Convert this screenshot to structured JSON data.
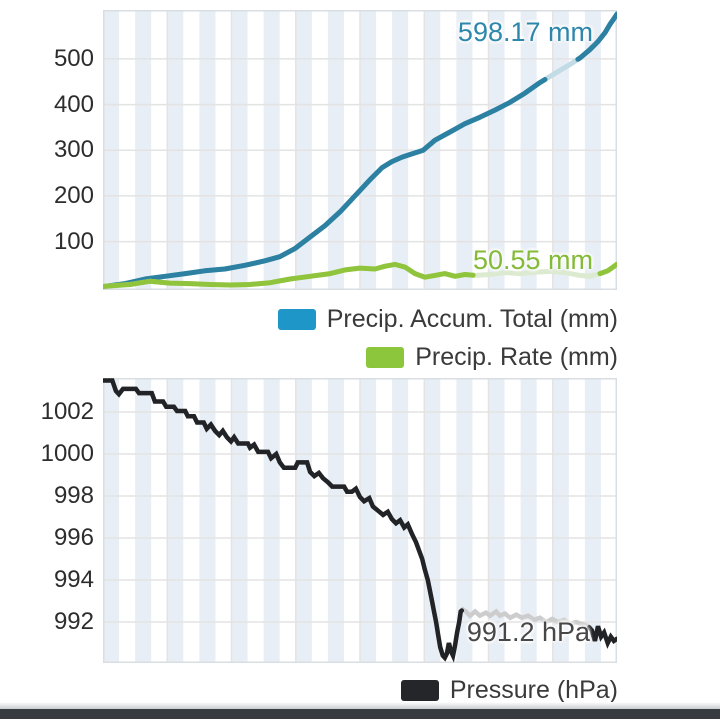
{
  "colors": {
    "background": "#ffffff",
    "plot_band": "#e8eef5",
    "grid_line": "#e3e3e3",
    "plot_border": "#d9dee2",
    "axis_text": "#2d2d2d",
    "legend_text": "#3a3a3a",
    "bottom_bar": "#383b3f"
  },
  "chart_data": [
    {
      "type": "line",
      "title": "",
      "xlabel": "",
      "ylabel": "",
      "x_axis": {
        "tick_labels_visible": false,
        "divisions": 8,
        "band_count": 32
      },
      "y_axis": {
        "ticks": [
          100,
          200,
          300,
          400,
          500
        ],
        "range": [
          -6,
          607
        ]
      },
      "grid": true,
      "legend_position": "bottom-right",
      "series": [
        {
          "name": "Precip. Accum. Total (mm)",
          "unit": "mm",
          "final_value": 598.17,
          "color": "#2c80a1",
          "light_color": "#c2dbe4",
          "stroke_width": 5,
          "linejoin": "round",
          "dark_ranges": [
            [
              0,
              86
            ],
            [
              92.4,
              100
            ]
          ],
          "points": [
            [
              0.4,
              2
            ],
            [
              4.3,
              8
            ],
            [
              8.2,
              18
            ],
            [
              12.1,
              24
            ],
            [
              16.0,
              30
            ],
            [
              19.8,
              36
            ],
            [
              23.7,
              40
            ],
            [
              27.6,
              48
            ],
            [
              31.5,
              58
            ],
            [
              34.4,
              67
            ],
            [
              37.4,
              85
            ],
            [
              40.3,
              110
            ],
            [
              43.2,
              135
            ],
            [
              46.1,
              165
            ],
            [
              49.0,
              200
            ],
            [
              51.9,
              235
            ],
            [
              54.3,
              262
            ],
            [
              56.2,
              275
            ],
            [
              58.2,
              285
            ],
            [
              60.1,
              292
            ],
            [
              62.3,
              300
            ],
            [
              64.6,
              322
            ],
            [
              67.5,
              340
            ],
            [
              70.4,
              358
            ],
            [
              73.3,
              372
            ],
            [
              76.3,
              388
            ],
            [
              79.2,
              405
            ],
            [
              82.1,
              425
            ],
            [
              85.0,
              448
            ],
            [
              87.9,
              468
            ],
            [
              90.9,
              488
            ],
            [
              92.8,
              502
            ],
            [
              94.7,
              520
            ],
            [
              96.3,
              538
            ],
            [
              97.7,
              558
            ],
            [
              98.6,
              575
            ],
            [
              99.4,
              588
            ],
            [
              100,
              598.17
            ]
          ]
        },
        {
          "name": "Precip. Rate (mm)",
          "unit": "mm",
          "final_value": 50.55,
          "color": "#8fc43c",
          "light_color": "#dcead0",
          "stroke_width": 5,
          "linejoin": "round",
          "dark_ranges": [
            [
              0,
              72
            ],
            [
              96.7,
              100
            ]
          ],
          "points": [
            [
              0.4,
              2
            ],
            [
              5.3,
              6
            ],
            [
              9.1,
              13
            ],
            [
              13.0,
              9
            ],
            [
              16.9,
              8
            ],
            [
              20.8,
              6
            ],
            [
              24.7,
              5
            ],
            [
              28.6,
              6
            ],
            [
              32.5,
              10
            ],
            [
              36.4,
              18
            ],
            [
              40.3,
              24
            ],
            [
              44.2,
              30
            ],
            [
              47.1,
              38
            ],
            [
              50.0,
              42
            ],
            [
              52.9,
              40
            ],
            [
              54.9,
              46
            ],
            [
              56.8,
              50
            ],
            [
              58.8,
              44
            ],
            [
              60.7,
              30
            ],
            [
              62.6,
              22
            ],
            [
              64.6,
              26
            ],
            [
              66.5,
              30
            ],
            [
              68.5,
              24
            ],
            [
              70.4,
              28
            ],
            [
              72.4,
              26
            ],
            [
              75.3,
              28
            ],
            [
              78.2,
              32
            ],
            [
              81.1,
              30
            ],
            [
              84.0,
              33
            ],
            [
              87.0,
              35
            ],
            [
              89.9,
              32
            ],
            [
              92.8,
              26
            ],
            [
              94.7,
              24
            ],
            [
              96.7,
              30
            ],
            [
              98.2,
              36
            ],
            [
              99.2,
              44
            ],
            [
              100,
              50.55
            ]
          ]
        }
      ],
      "legend": [
        {
          "label": "Precip. Accum. Total (mm)",
          "color": "#1e96c8"
        },
        {
          "label": "Precip. Rate (mm)",
          "color": "#8cc63d"
        }
      ],
      "annotations": [
        {
          "text": "598.17 mm",
          "color": "#2c87ab"
        },
        {
          "text": "50.55 mm",
          "color": "#83ba37"
        }
      ]
    },
    {
      "type": "line",
      "title": "",
      "xlabel": "",
      "ylabel": "",
      "x_axis": {
        "tick_labels_visible": false,
        "divisions": 8,
        "band_count": 32
      },
      "y_axis": {
        "ticks": [
          992,
          994,
          996,
          998,
          1000,
          1002
        ],
        "range": [
          990.05,
          1003.62
        ]
      },
      "grid": true,
      "legend_position": "bottom-right",
      "series": [
        {
          "name": "Pressure (hPa)",
          "unit": "hPa",
          "final_value": 991.2,
          "color": "#212326",
          "light_color": "#cdcdcd",
          "stroke_width": 4.5,
          "linejoin": "miter",
          "dark_ranges": [
            [
              0,
              69.8
            ],
            [
              94.6,
              100
            ]
          ],
          "points": [
            [
              0.4,
              1003.5
            ],
            [
              1.8,
              1003.5
            ],
            [
              2.5,
              1003.0
            ],
            [
              3.1,
              1002.85
            ],
            [
              3.9,
              1003.1
            ],
            [
              6.4,
              1003.1
            ],
            [
              7.0,
              1002.9
            ],
            [
              9.5,
              1002.9
            ],
            [
              10.1,
              1002.5
            ],
            [
              11.7,
              1002.5
            ],
            [
              12.3,
              1002.25
            ],
            [
              13.8,
              1002.25
            ],
            [
              14.4,
              1002.05
            ],
            [
              16.0,
              1002.05
            ],
            [
              16.5,
              1001.8
            ],
            [
              17.7,
              1001.8
            ],
            [
              18.3,
              1001.5
            ],
            [
              19.6,
              1001.5
            ],
            [
              20.2,
              1001.2
            ],
            [
              21.0,
              1001.4
            ],
            [
              21.8,
              1001.1
            ],
            [
              22.6,
              1000.9
            ],
            [
              23.3,
              1001.1
            ],
            [
              24.1,
              1000.8
            ],
            [
              24.9,
              1000.6
            ],
            [
              25.5,
              1000.8
            ],
            [
              26.3,
              1000.5
            ],
            [
              28.2,
              1000.5
            ],
            [
              28.6,
              1000.3
            ],
            [
              29.4,
              1000.45
            ],
            [
              30.2,
              1000.1
            ],
            [
              32.1,
              1000.1
            ],
            [
              32.7,
              999.8
            ],
            [
              33.7,
              1000.0
            ],
            [
              34.4,
              999.6
            ],
            [
              35.2,
              999.35
            ],
            [
              37.4,
              999.35
            ],
            [
              37.9,
              999.6
            ],
            [
              39.7,
              999.6
            ],
            [
              40.3,
              999.15
            ],
            [
              41.1,
              998.95
            ],
            [
              42.0,
              999.1
            ],
            [
              42.8,
              998.85
            ],
            [
              43.8,
              998.65
            ],
            [
              44.6,
              998.45
            ],
            [
              46.9,
              998.45
            ],
            [
              47.5,
              998.2
            ],
            [
              48.4,
              998.2
            ],
            [
              49.2,
              998.35
            ],
            [
              50.0,
              997.95
            ],
            [
              50.8,
              997.75
            ],
            [
              51.8,
              997.9
            ],
            [
              52.5,
              997.5
            ],
            [
              53.5,
              997.3
            ],
            [
              54.5,
              997.1
            ],
            [
              55.4,
              997.25
            ],
            [
              56.2,
              996.9
            ],
            [
              57.0,
              996.7
            ],
            [
              57.8,
              996.85
            ],
            [
              58.6,
              996.5
            ],
            [
              59.3,
              996.65
            ],
            [
              60.1,
              996.2
            ],
            [
              60.9,
              995.8
            ],
            [
              61.5,
              995.4
            ],
            [
              62.1,
              995.0
            ],
            [
              62.6,
              994.5
            ],
            [
              63.2,
              994.0
            ],
            [
              63.6,
              993.5
            ],
            [
              64.0,
              993.0
            ],
            [
              64.4,
              992.5
            ],
            [
              64.8,
              992.0
            ],
            [
              65.2,
              991.4
            ],
            [
              65.6,
              990.8
            ],
            [
              66.1,
              990.4
            ],
            [
              66.5,
              990.3
            ],
            [
              66.9,
              990.5
            ],
            [
              67.3,
              991.0
            ],
            [
              67.7,
              990.6
            ],
            [
              68.1,
              990.4
            ],
            [
              68.5,
              990.9
            ],
            [
              68.9,
              991.5
            ],
            [
              69.3,
              992.0
            ],
            [
              69.6,
              992.5
            ],
            [
              70.0,
              992.6
            ],
            [
              70.6,
              992.5
            ],
            [
              71.4,
              992.3
            ],
            [
              72.4,
              992.5
            ],
            [
              73.3,
              992.3
            ],
            [
              74.5,
              992.45
            ],
            [
              75.3,
              992.3
            ],
            [
              76.5,
              992.5
            ],
            [
              77.2,
              992.3
            ],
            [
              78.2,
              992.4
            ],
            [
              79.2,
              992.2
            ],
            [
              80.4,
              992.35
            ],
            [
              81.5,
              992.2
            ],
            [
              82.7,
              992.3
            ],
            [
              83.9,
              992.1
            ],
            [
              85.0,
              992.2
            ],
            [
              86.2,
              992.0
            ],
            [
              87.4,
              992.15
            ],
            [
              88.5,
              992.0
            ],
            [
              89.7,
              992.1
            ],
            [
              90.9,
              991.9
            ],
            [
              92.0,
              992.0
            ],
            [
              93.2,
              991.9
            ],
            [
              94.4,
              991.8
            ],
            [
              95.1,
              991.6
            ],
            [
              95.7,
              991.1
            ],
            [
              96.3,
              991.8
            ],
            [
              96.9,
              991.3
            ],
            [
              97.5,
              991.5
            ],
            [
              98.2,
              991.0
            ],
            [
              98.8,
              991.3
            ],
            [
              99.4,
              991.1
            ],
            [
              100,
              991.2
            ]
          ]
        }
      ],
      "legend": [
        {
          "label": "Pressure (hPa)",
          "color": "#242629"
        }
      ],
      "annotations": [
        {
          "text": "991.2 hPa",
          "color": "#474747"
        }
      ]
    }
  ]
}
